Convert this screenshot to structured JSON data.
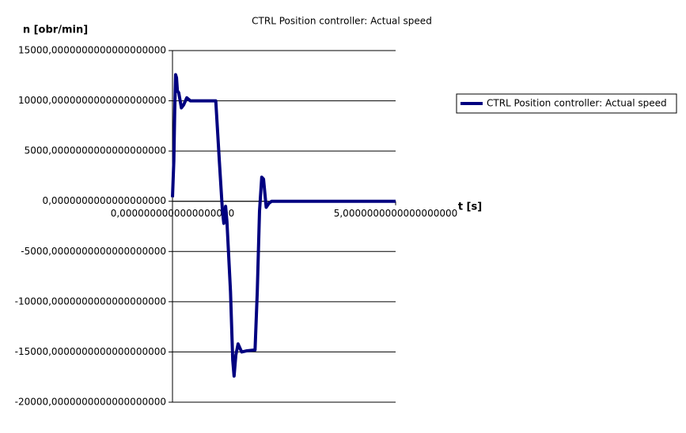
{
  "chart_data": {
    "type": "line",
    "title": "CTRL Position controller: Actual speed",
    "y_label": "n [obr/min]",
    "x_label": "t [s]",
    "x": [
      0,
      0.03,
      0.05,
      0.07,
      0.09,
      0.11,
      0.14,
      0.2,
      0.25,
      0.32,
      0.4,
      0.97,
      1.05,
      1.12,
      1.15,
      1.19,
      1.22,
      1.3,
      1.35,
      1.38,
      1.42,
      1.47,
      1.55,
      1.65,
      1.85,
      1.9,
      1.95,
      2.0,
      2.04,
      2.1,
      2.16,
      2.22,
      5
    ],
    "series": [
      {
        "name": "CTRL Position controller: Actual speed",
        "color": "#000080",
        "values": [
          400,
          4000,
          9000,
          12600,
          12300,
          11000,
          10800,
          9300,
          9600,
          10300,
          10000,
          10000,
          4000,
          -1000,
          -2200,
          -500,
          -2000,
          -9000,
          -15800,
          -17400,
          -15300,
          -14200,
          -15000,
          -14900,
          -14800,
          -9000,
          -1000,
          2400,
          2200,
          -600,
          -200,
          0,
          0
        ]
      }
    ],
    "xlim": [
      0,
      5
    ],
    "xticks": [
      {
        "value": 0,
        "label": "0,0000000000000000000"
      },
      {
        "value": 5,
        "label": "5,0000000000000000000"
      }
    ],
    "ylim": [
      -20000,
      15000
    ],
    "yticks": [
      {
        "value": -20000,
        "label": "-20000,0000000000000000000"
      },
      {
        "value": -15000,
        "label": "-15000,0000000000000000000"
      },
      {
        "value": -10000,
        "label": "-10000,0000000000000000000"
      },
      {
        "value": -5000,
        "label": "-5000,0000000000000000000"
      },
      {
        "value": 0,
        "label": "0,0000000000000000000"
      },
      {
        "value": 5000,
        "label": "5000,0000000000000000000"
      },
      {
        "value": 10000,
        "label": "10000,0000000000000000000"
      },
      {
        "value": 15000,
        "label": "15000,0000000000000000000"
      }
    ],
    "grid": true,
    "legend": "right"
  }
}
